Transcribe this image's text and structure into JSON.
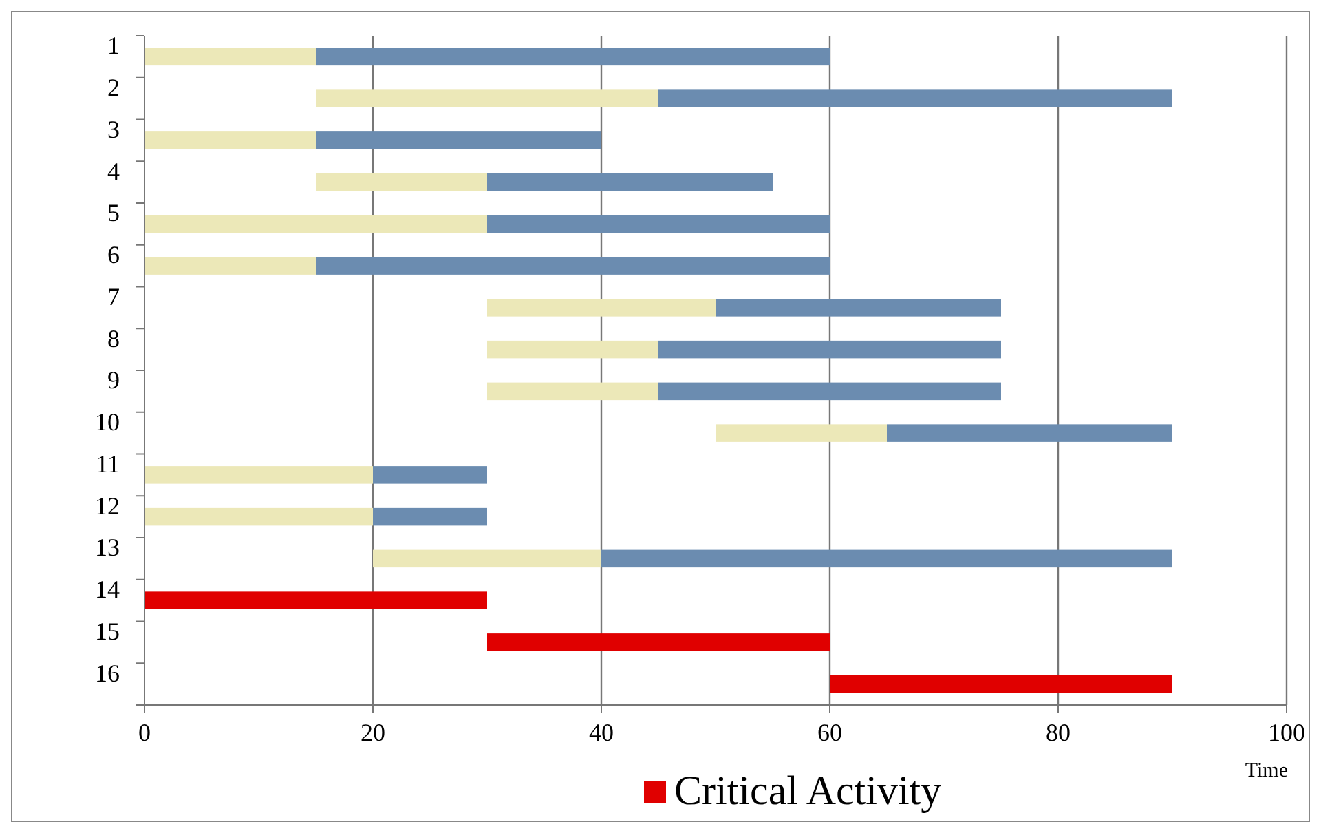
{
  "chart_data": {
    "type": "bar",
    "orientation": "horizontal",
    "categories": [
      "1",
      "2",
      "3",
      "4",
      "5",
      "6",
      "7",
      "8",
      "9",
      "10",
      "11",
      "12",
      "13",
      "14",
      "15",
      "16"
    ],
    "series": [
      {
        "color": "#ece8b8",
        "base": [
          0,
          15,
          0,
          15,
          0,
          0,
          30,
          30,
          30,
          50,
          0,
          0,
          20,
          null,
          null,
          null
        ],
        "values": [
          15,
          30,
          15,
          15,
          30,
          15,
          20,
          15,
          15,
          15,
          20,
          20,
          20,
          null,
          null,
          null
        ]
      },
      {
        "color": "#6b8cb0",
        "base": [
          15,
          45,
          15,
          30,
          30,
          15,
          50,
          45,
          45,
          65,
          20,
          20,
          40,
          null,
          null,
          null
        ],
        "values": [
          45,
          45,
          25,
          25,
          30,
          45,
          25,
          30,
          30,
          25,
          10,
          10,
          50,
          null,
          null,
          null
        ]
      },
      {
        "name": "Critical Activity",
        "color": "#e00000",
        "base": [
          null,
          null,
          null,
          null,
          null,
          null,
          null,
          null,
          null,
          null,
          null,
          null,
          null,
          0,
          30,
          60
        ],
        "values": [
          null,
          null,
          null,
          null,
          null,
          null,
          null,
          null,
          null,
          null,
          null,
          null,
          null,
          30,
          30,
          30
        ]
      }
    ],
    "xlim": [
      0,
      100
    ],
    "xticks": [
      0,
      20,
      40,
      60,
      80,
      100
    ],
    "xlabel": "Time",
    "grid": "x",
    "legend": "bottom"
  }
}
